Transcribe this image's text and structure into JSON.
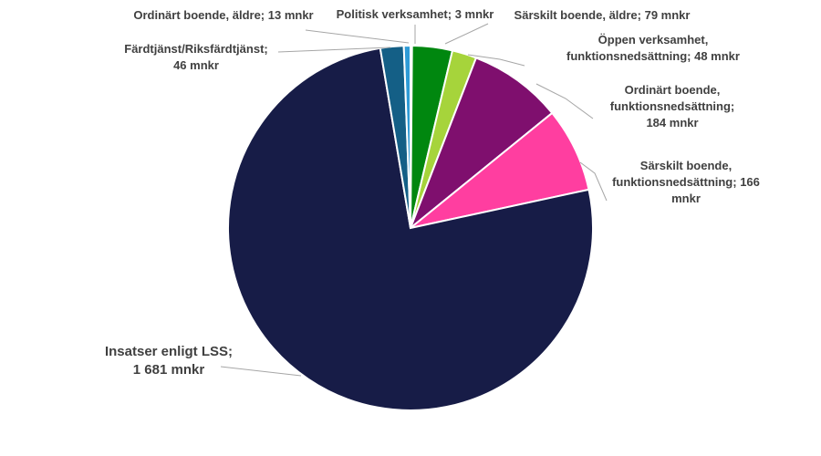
{
  "chart_data": {
    "type": "pie",
    "title": "",
    "unit": "mnkr",
    "slices": [
      {
        "name": "Politisk verksamhet",
        "value": 3,
        "color": "#2e9bd6",
        "label_lines": [
          "Politisk verksamhet; 3 mnkr"
        ]
      },
      {
        "name": "Särskilt boende, äldre",
        "value": 79,
        "color": "#00870f",
        "label_lines": [
          "Särskilt boende, äldre; 79 mnkr"
        ]
      },
      {
        "name": "Öppen verksamhet, funktionsnedsättning",
        "value": 48,
        "color": "#a6d43b",
        "label_lines": [
          "Öppen verksamhet,",
          "funktionsnedsättning; 48 mnkr"
        ]
      },
      {
        "name": "Ordinärt boende, funktionsnedsättning",
        "value": 184,
        "color": "#7f0f6e",
        "label_lines": [
          "Ordinärt boende,",
          "funktionsnedsättning;",
          "184 mnkr"
        ]
      },
      {
        "name": "Särskilt boende, funktionsnedsättning",
        "value": 166,
        "color": "#ff3ea0",
        "label_lines": [
          "Särskilt boende,",
          "funktionsnedsättning; 166",
          "mnkr"
        ]
      },
      {
        "name": "Insatser enligt LSS",
        "value": 1681,
        "color": "#171c47",
        "label_lines": [
          "Insatser enligt LSS;",
          "1 681 mnkr"
        ]
      },
      {
        "name": "Färdtjänst/Riksfärdtjänst",
        "value": 46,
        "color": "#145f86",
        "label_lines": [
          "Färdtjänst/Riksfärdtjänst;",
          "46 mnkr"
        ]
      },
      {
        "name": "Ordinärt boende, äldre",
        "value": 13,
        "color": "#2e9bd6",
        "label_lines": [
          "Ordinärt boende, äldre; 13 mnkr"
        ]
      }
    ]
  }
}
